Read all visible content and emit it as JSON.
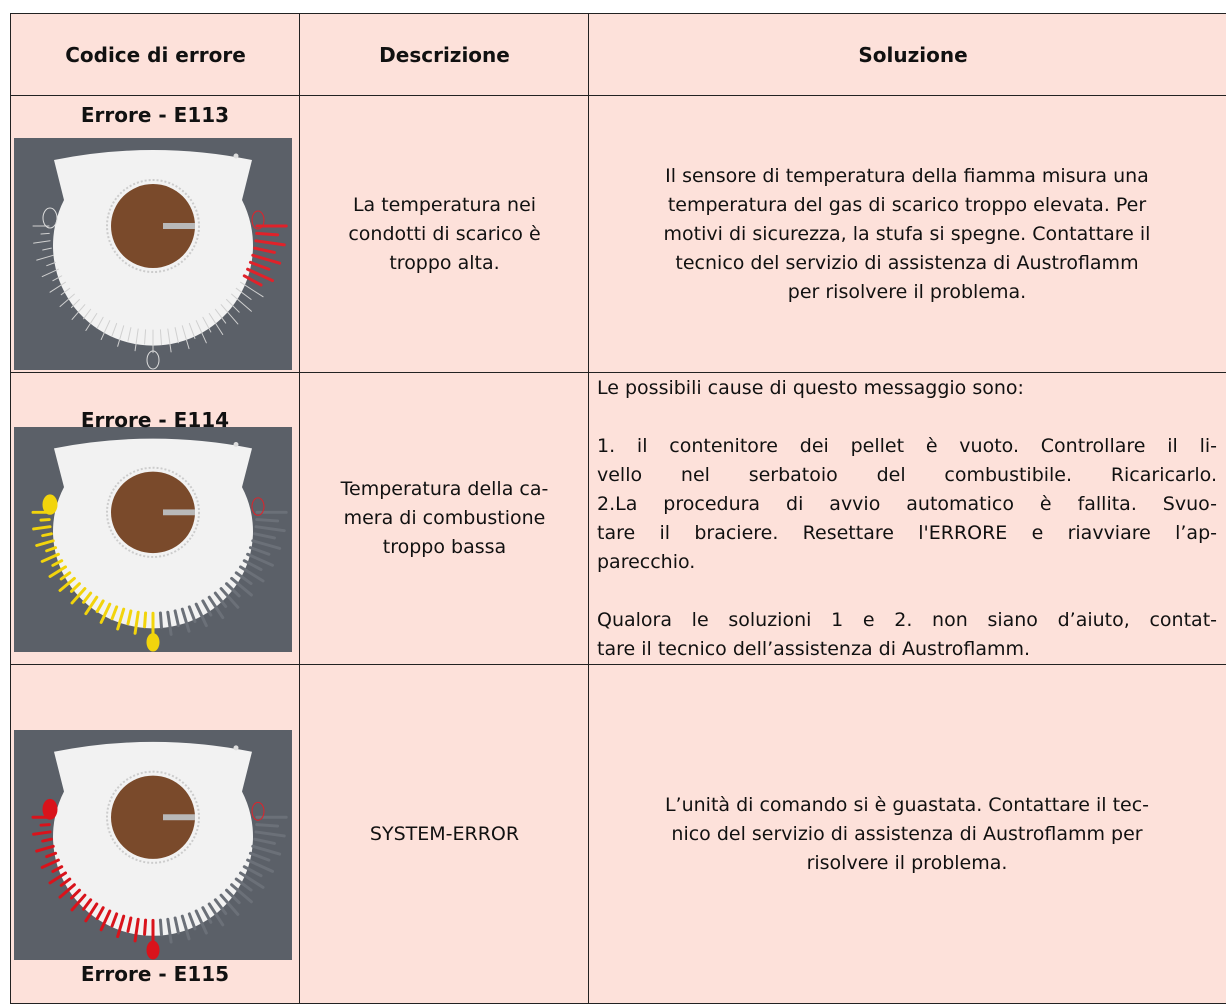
{
  "header": {
    "columns": [
      "Codice di errore",
      "Descrizione",
      "Soluzione"
    ]
  },
  "rows": [
    {
      "code": "Errore - E113",
      "description": [
        "La temperatura nei",
        "condotti di scarico è",
        "troppo alta."
      ],
      "solution": [
        [
          "Il sensore di temperatura della fiamma misura una",
          "temperatura del gas di scarico troppo elevata. Per",
          "motivi di sicurezza, la stufa si spegne. Contattare il",
          "tecnico del servizio di assistenza di Austroflamm",
          "per risolvere il problema."
        ]
      ]
    },
    {
      "code": "Errore - E114",
      "description": [
        "Temperatura della ca-",
        "mera di combustione",
        "troppo bassa"
      ],
      "solution": [
        [
          "Le possibili cause di questo messaggio sono:"
        ],
        [
          "1. il contenitore dei pellet è vuoto. Controllare il li-",
          "vello nel serbatoio del combustibile. Ricaricarlo.",
          "2.La procedura di avvio automatico è fallita. Svuo-",
          "tare il braciere. Resettare l'ERRORE e riavviare l’ap-",
          "parecchio."
        ],
        [
          "Qualora le soluzioni 1 e 2. non siano d’aiuto, contat-",
          "tare il tecnico dell’assistenza di Austroflamm."
        ]
      ]
    },
    {
      "code": "Errore - E115",
      "description": [
        "SYSTEM-ERROR"
      ],
      "solution": [
        [
          "L’unità di comando si è guastata. Contattare il tec-",
          "nico del servizio di assistenza di Austroflamm per",
          "risolvere il problema."
        ]
      ]
    }
  ]
}
